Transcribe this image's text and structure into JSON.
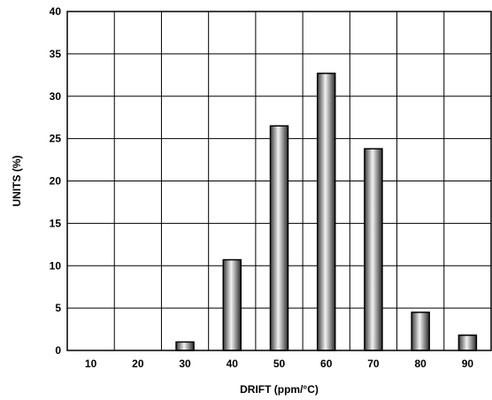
{
  "chart_data": {
    "type": "bar",
    "categories": [
      "10",
      "20",
      "30",
      "40",
      "50",
      "60",
      "70",
      "80",
      "90"
    ],
    "values": [
      0,
      0,
      1,
      10.7,
      26.5,
      32.7,
      23.8,
      4.5,
      1.8
    ],
    "xlabel": "DRIFT (ppm/°C)",
    "ylabel": "UNITS (%)",
    "ylim": [
      0,
      40
    ],
    "yticks": [
      "0",
      "5",
      "10",
      "15",
      "20",
      "25",
      "30",
      "35",
      "40"
    ],
    "grid": true,
    "legend": "none",
    "bar_color": "#777777"
  }
}
